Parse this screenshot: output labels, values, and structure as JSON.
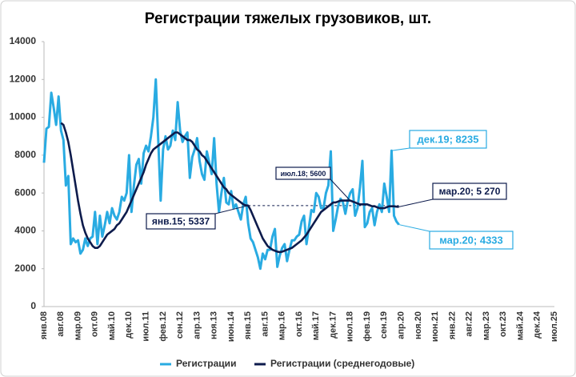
{
  "chart_data": {
    "type": "line",
    "title": "Регистрации тяжелых грузовиков, шт.",
    "categories": [
      "янв.08",
      null,
      null,
      null,
      null,
      null,
      null,
      "авг.08",
      null,
      null,
      null,
      null,
      null,
      null,
      "мар.09",
      null,
      null,
      null,
      null,
      null,
      null,
      "окт.09",
      null,
      null,
      null,
      null,
      null,
      null,
      "май.10",
      null,
      null,
      null,
      null,
      null,
      null,
      "дек.10",
      null,
      null,
      null,
      null,
      null,
      null,
      "июл.11",
      null,
      null,
      null,
      null,
      null,
      null,
      "фев.12",
      null,
      null,
      null,
      null,
      null,
      null,
      "сен.12",
      null,
      null,
      null,
      null,
      null,
      null,
      "апр.13",
      null,
      null,
      null,
      null,
      null,
      null,
      "ноя.13",
      null,
      null,
      null,
      null,
      null,
      null,
      "июн.14",
      null,
      null,
      null,
      null,
      null,
      null,
      "янв.15",
      null,
      null,
      null,
      null,
      null,
      null,
      "авг.15",
      null,
      null,
      null,
      null,
      null,
      null,
      "мар.16",
      null,
      null,
      null,
      null,
      null,
      null,
      "окт.16",
      null,
      null,
      null,
      null,
      null,
      null,
      "май.17",
      null,
      null,
      null,
      null,
      null,
      null,
      "дек.17",
      null,
      null,
      null,
      null,
      null,
      null,
      "июл.18",
      null,
      null,
      null,
      null,
      null,
      null,
      "фев.19",
      null,
      null,
      null,
      null,
      null,
      null,
      "сен.19",
      null,
      null,
      null,
      null,
      null,
      null,
      "апр.20",
      null,
      null,
      null,
      null,
      null,
      null,
      "ноя.20",
      null,
      null,
      null,
      null,
      null,
      null,
      "июн.21",
      null,
      null,
      null,
      null,
      null,
      null,
      "янв.22",
      null,
      null,
      null,
      null,
      null,
      null,
      "авг.22",
      null,
      null,
      null,
      null,
      null,
      null,
      "мар.23",
      null,
      null,
      null,
      null,
      null,
      null,
      "окт.23",
      null,
      null,
      null,
      null,
      null,
      null,
      "май.24",
      null,
      null,
      null,
      null,
      null,
      null,
      "дек.24",
      null,
      null,
      null,
      null,
      null,
      null,
      "июл.25"
    ],
    "series": [
      {
        "name": "Регистрации",
        "color": "#29abe2",
        "values": [
          7600,
          9400,
          9500,
          11300,
          10500,
          9600,
          11100,
          9300,
          8800,
          6400,
          6900,
          3300,
          3600,
          3400,
          3500,
          2800,
          3000,
          3600,
          3200,
          3600,
          3700,
          5000,
          3300,
          4800,
          3700,
          4300,
          5000,
          4400,
          5200,
          4800,
          4600,
          5000,
          5800,
          5600,
          6000,
          8000,
          5000,
          6400,
          7500,
          7800,
          6500,
          8100,
          8500,
          8200,
          9000,
          10000,
          12000,
          8800,
          5600,
          8300,
          9000,
          8300,
          8500,
          9300,
          8800,
          10800,
          9300,
          8700,
          9000,
          9200,
          6800,
          7900,
          8300,
          8900,
          7700,
          7000,
          6700,
          8200,
          7600,
          7000,
          8900,
          6500,
          5000,
          6000,
          6800,
          5500,
          5400,
          6100,
          5200,
          5400,
          5000,
          4600,
          5400,
          5800,
          4400,
          3600,
          3400,
          3000,
          2600,
          2000,
          2800,
          2500,
          3000,
          3000,
          3700,
          4100,
          2100,
          2700,
          3100,
          3300,
          2400,
          3000,
          3500,
          3500,
          3700,
          3800,
          4500,
          4800,
          3300,
          4200,
          5100,
          5000,
          6000,
          5800,
          5200,
          5200,
          6000,
          6400,
          8200,
          4000,
          4600,
          5300,
          5700,
          5500,
          4900,
          5600,
          6000,
          6200,
          4800,
          5200,
          6300,
          7700,
          4200,
          4400,
          5000,
          5200,
          4300,
          5000,
          5400,
          5000,
          6500,
          5800,
          5000,
          8235,
          4800,
          4500,
          4333,
          null,
          null,
          null,
          null,
          null,
          null,
          null,
          null,
          null,
          null,
          null,
          null,
          null,
          null,
          null,
          null,
          null,
          null,
          null,
          null,
          null,
          null,
          null,
          null,
          null,
          null,
          null,
          null,
          null,
          null,
          null,
          null,
          null,
          null,
          null,
          null,
          null,
          null,
          null,
          null,
          null,
          null,
          null,
          null,
          null,
          null,
          null,
          null,
          null,
          null,
          null,
          null,
          null,
          null,
          null,
          null,
          null,
          null,
          null,
          null,
          null,
          null,
          null,
          null
        ]
      },
      {
        "name": "Регистрации (среднегодовые)",
        "color": "#0d1b4c",
        "values": [
          null,
          null,
          null,
          null,
          null,
          null,
          null,
          9700,
          9600,
          9200,
          8700,
          8000,
          7200,
          6400,
          5600,
          4900,
          4300,
          3900,
          3600,
          3400,
          3200,
          3100,
          3100,
          3200,
          3400,
          3600,
          3800,
          3900,
          4000,
          4100,
          4300,
          4400,
          4600,
          4800,
          5000,
          5300,
          5600,
          5900,
          6200,
          6500,
          6800,
          7100,
          7500,
          7800,
          8100,
          8300,
          8400,
          8500,
          8600,
          8700,
          8800,
          8900,
          9000,
          9100,
          9200,
          9200,
          9100,
          9000,
          8900,
          8800,
          8800,
          8700,
          8500,
          8300,
          8200,
          8000,
          7900,
          7700,
          7500,
          7300,
          7100,
          6900,
          6700,
          6500,
          6300,
          6200,
          6000,
          5900,
          5800,
          5700,
          5600,
          5500,
          5400,
          5350,
          5337,
          5100,
          4800,
          4500,
          4200,
          3900,
          3600,
          3400,
          3200,
          3100,
          3000,
          2950,
          2900,
          2880,
          2900,
          2950,
          3000,
          3050,
          3100,
          3200,
          3300,
          3400,
          3500,
          3650,
          3800,
          4000,
          4200,
          4400,
          4600,
          4800,
          5000,
          5100,
          5200,
          5300,
          5400,
          5500,
          5500,
          5550,
          5600,
          5600,
          5600,
          5600,
          5600,
          5550,
          5500,
          5450,
          5400,
          5400,
          5400,
          5400,
          5350,
          5300,
          5300,
          5250,
          5200,
          5200,
          5200,
          5250,
          5300,
          5300,
          5300,
          5280,
          5270,
          null,
          null,
          null,
          null,
          null,
          null,
          null,
          null,
          null,
          null,
          null,
          null,
          null,
          null,
          null,
          null,
          null,
          null,
          null,
          null,
          null,
          null,
          null,
          null,
          null,
          null,
          null,
          null,
          null,
          null,
          null,
          null,
          null,
          null,
          null,
          null,
          null,
          null,
          null,
          null,
          null,
          null,
          null,
          null,
          null,
          null,
          null,
          null,
          null,
          null,
          null,
          null,
          null,
          null,
          null,
          null,
          null,
          null,
          null,
          null,
          null,
          null,
          null,
          null
        ]
      }
    ],
    "annotations": [
      "дек.19; 8235",
      "мар.20; 4333",
      "мар.20; 5 270",
      "июл.18; 5600",
      "янв.15; 5337"
    ],
    "ylim": [
      0,
      14000
    ],
    "yticks": [
      0,
      2000,
      4000,
      6000,
      8000,
      10000,
      12000,
      14000
    ],
    "grid": false
  }
}
